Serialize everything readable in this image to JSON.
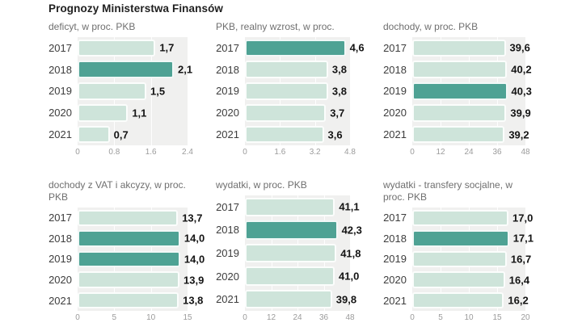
{
  "page": {
    "title": "Prognozy Ministerstwa Finansów"
  },
  "colors": {
    "bar_light": "#cee4da",
    "bar_dark": "#4ea294",
    "plot_background": "#f0f0ef",
    "page_background": "#ffffff",
    "title_text": "#1f1f1f",
    "subtitle_text": "#6f6f6f",
    "year_text": "#3d3d3d",
    "value_text": "#141414",
    "tick_text": "#9b9b9b"
  },
  "chart_data": [
    {
      "id": "deficyt",
      "type": "bar",
      "orientation": "horizontal",
      "title": "deficyt, w proc. PKB",
      "categories": [
        "2017",
        "2018",
        "2019",
        "2020",
        "2021"
      ],
      "values": [
        1.7,
        2.1,
        1.5,
        1.1,
        0.7
      ],
      "value_labels": [
        "1,7",
        "2,1",
        "1,5",
        "1,1",
        "0,7"
      ],
      "highlight_indices": [
        1
      ],
      "xlim": [
        0,
        2.4
      ],
      "ticks": [
        "0",
        "0.8",
        "1.6",
        "2.4"
      ],
      "grid": "vertical-white",
      "legend": "none"
    },
    {
      "id": "pkb-realny-wzrost",
      "type": "bar",
      "orientation": "horizontal",
      "title": "PKB, realny wzrost, w proc.",
      "categories": [
        "2017",
        "2018",
        "2019",
        "2020",
        "2021"
      ],
      "values": [
        4.6,
        3.8,
        3.8,
        3.7,
        3.6
      ],
      "value_labels": [
        "4,6",
        "3,8",
        "3,8",
        "3,7",
        "3,6"
      ],
      "highlight_indices": [
        0
      ],
      "xlim": [
        0,
        4.8
      ],
      "ticks": [
        "0",
        "1.6",
        "3.2",
        "4.8"
      ],
      "grid": "vertical-white",
      "legend": "none"
    },
    {
      "id": "dochody",
      "type": "bar",
      "orientation": "horizontal",
      "title": "dochody, w proc. PKB",
      "categories": [
        "2017",
        "2018",
        "2019",
        "2020",
        "2021"
      ],
      "values": [
        39.6,
        40.2,
        40.3,
        39.9,
        39.2
      ],
      "value_labels": [
        "39,6",
        "40,2",
        "40,3",
        "39,9",
        "39,2"
      ],
      "highlight_indices": [
        2
      ],
      "xlim": [
        0,
        48
      ],
      "ticks": [
        "0",
        "12",
        "24",
        "36",
        "48"
      ],
      "grid": "vertical-white",
      "legend": "none"
    },
    {
      "id": "dochody-vat-akcyzy",
      "type": "bar",
      "orientation": "horizontal",
      "title": "dochody z VAT i akcyzy, w proc. PKB",
      "categories": [
        "2017",
        "2018",
        "2019",
        "2020",
        "2021"
      ],
      "values": [
        13.7,
        14.0,
        14.0,
        13.9,
        13.8
      ],
      "value_labels": [
        "13,7",
        "14,0",
        "14,0",
        "13,9",
        "13,8"
      ],
      "highlight_indices": [
        1,
        2
      ],
      "xlim": [
        0,
        15
      ],
      "ticks": [
        "0",
        "5",
        "10",
        "15"
      ],
      "grid": "vertical-white",
      "legend": "none"
    },
    {
      "id": "wydatki",
      "type": "bar",
      "orientation": "horizontal",
      "title": "wydatki, w proc. PKB",
      "categories": [
        "2017",
        "2018",
        "2019",
        "2020",
        "2021"
      ],
      "values": [
        41.1,
        42.3,
        41.8,
        41.0,
        39.8
      ],
      "value_labels": [
        "41,1",
        "42,3",
        "41,8",
        "41,0",
        "39,8"
      ],
      "highlight_indices": [
        1
      ],
      "xlim": [
        0,
        48
      ],
      "ticks": [
        "0",
        "12",
        "24",
        "36",
        "48"
      ],
      "grid": "vertical-white",
      "legend": "none"
    },
    {
      "id": "wydatki-transfery-socjalne",
      "type": "bar",
      "orientation": "horizontal",
      "title": "wydatki - transfery socjalne, w proc. PKB",
      "categories": [
        "2017",
        "2018",
        "2019",
        "2020",
        "2021"
      ],
      "values": [
        17.0,
        17.1,
        16.7,
        16.4,
        16.2
      ],
      "value_labels": [
        "17,0",
        "17,1",
        "16,7",
        "16,4",
        "16,2"
      ],
      "highlight_indices": [
        1
      ],
      "xlim": [
        0,
        20
      ],
      "ticks": [
        "0",
        "5",
        "10",
        "15",
        "20"
      ],
      "grid": "vertical-white",
      "legend": "none"
    }
  ]
}
